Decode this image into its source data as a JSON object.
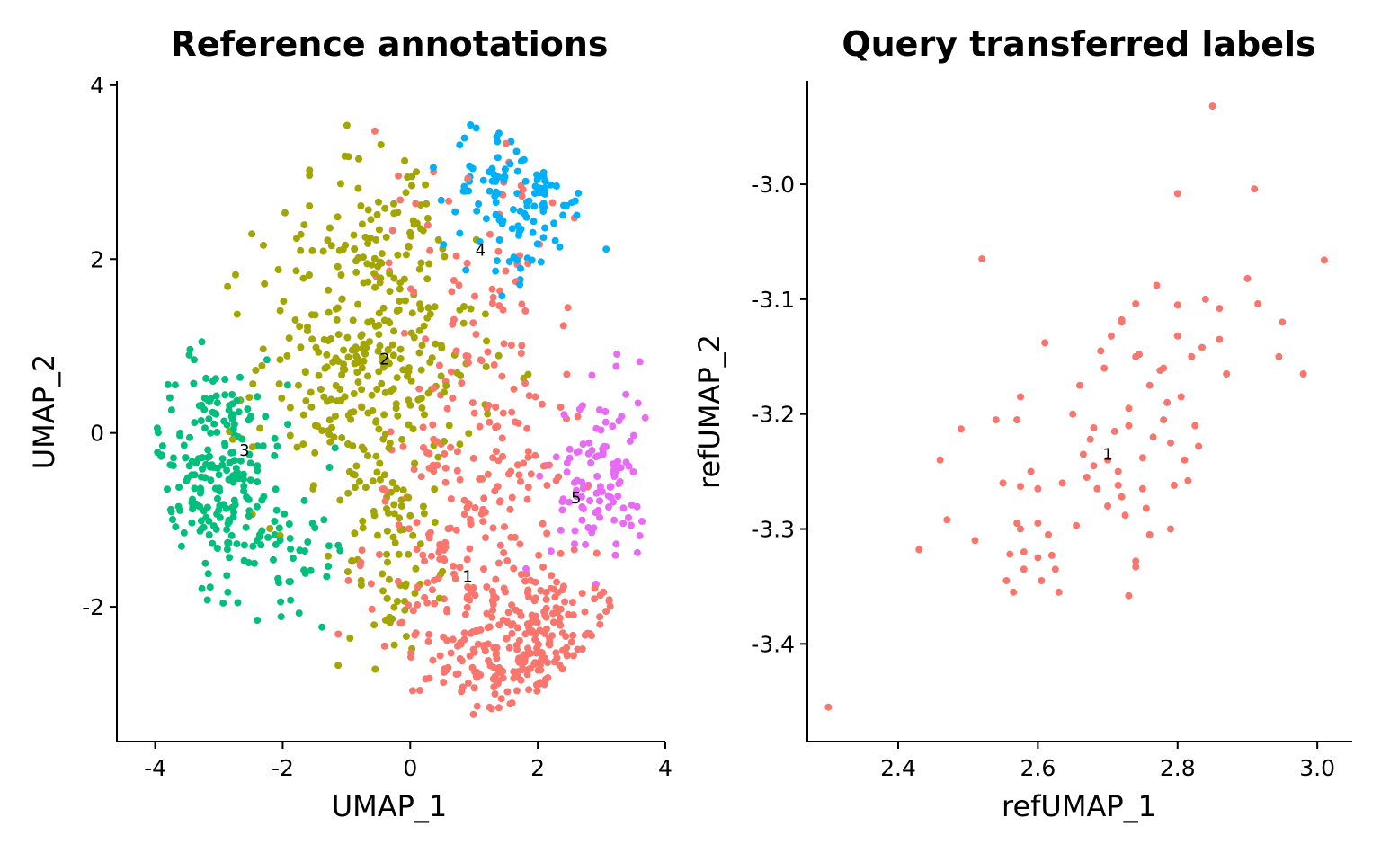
{
  "chart_data": [
    {
      "type": "scatter",
      "title": "Reference annotations",
      "xlabel": "UMAP_1",
      "ylabel": "UMAP_2",
      "xlim": [
        -4.6,
        4.0
      ],
      "ylim": [
        -3.55,
        4.05
      ],
      "xticks": [
        -4,
        -2,
        0,
        2,
        4
      ],
      "xtick_labels": [
        "-4",
        "-2",
        "0",
        "2",
        "4"
      ],
      "yticks": [
        -2,
        0,
        2,
        4
      ],
      "ytick_labels": [
        "-2",
        "0",
        "2",
        "4"
      ],
      "grid": false,
      "legend": "none",
      "series": [
        {
          "label": "1",
          "color": "#F8766D",
          "center": [
            0.9,
            -1.65
          ],
          "blobs": [
            {
              "cx": 1.9,
              "cy": -2.55,
              "sx": 0.75,
              "sy": 0.5,
              "n": 230
            },
            {
              "cx": 0.9,
              "cy": -1.2,
              "sx": 0.8,
              "sy": 0.7,
              "n": 170
            },
            {
              "cx": 1.3,
              "cy": 0.5,
              "sx": 0.6,
              "sy": 0.9,
              "n": 60
            },
            {
              "cx": 0.9,
              "cy": 2.0,
              "sx": 0.8,
              "sy": 0.9,
              "n": 50
            }
          ]
        },
        {
          "label": "2",
          "color": "#A3A500",
          "center": [
            -0.4,
            0.85
          ],
          "blobs": [
            {
              "cx": -0.7,
              "cy": 0.8,
              "sx": 0.85,
              "sy": 0.9,
              "n": 320
            },
            {
              "cx": -0.3,
              "cy": -1.5,
              "sx": 0.35,
              "sy": 0.55,
              "n": 60
            },
            {
              "cx": -0.4,
              "cy": 2.4,
              "sx": 0.5,
              "sy": 0.55,
              "n": 50
            }
          ]
        },
        {
          "label": "3",
          "color": "#00BF7D",
          "center": [
            -2.6,
            -0.2
          ],
          "blobs": [
            {
              "cx": -3.1,
              "cy": -0.45,
              "sx": 0.6,
              "sy": 0.65,
              "n": 220
            },
            {
              "cx": -1.7,
              "cy": -1.3,
              "sx": 0.4,
              "sy": 0.35,
              "n": 40
            }
          ]
        },
        {
          "label": "4",
          "color": "#00B0F6",
          "center": [
            1.1,
            2.1
          ],
          "blobs": [
            {
              "cx": 1.7,
              "cy": 2.75,
              "sx": 0.6,
              "sy": 0.5,
              "n": 120
            }
          ]
        },
        {
          "label": "5",
          "color": "#E76BF3",
          "center": [
            2.6,
            -0.75
          ],
          "blobs": [
            {
              "cx": 3.0,
              "cy": -0.55,
              "sx": 0.4,
              "sy": 0.55,
              "n": 110
            }
          ]
        }
      ]
    },
    {
      "type": "scatter",
      "title": "Query transferred labels",
      "xlabel": "refUMAP_1",
      "ylabel": "refUMAP_2",
      "xlim": [
        2.27,
        3.05
      ],
      "ylim": [
        -3.485,
        -2.91
      ],
      "xticks": [
        2.4,
        2.6,
        2.8,
        3.0
      ],
      "xtick_labels": [
        "2.4",
        "2.6",
        "2.8",
        "3.0"
      ],
      "yticks": [
        -3.0,
        -3.1,
        -3.2,
        -3.3,
        -3.4
      ],
      "ytick_labels": [
        "-3.0",
        "-3.1",
        "-3.2",
        "-3.3",
        "-3.4"
      ],
      "grid": false,
      "legend": "none",
      "series": [
        {
          "label": "1",
          "color": "#F8766D",
          "center": [
            2.7,
            -3.235
          ],
          "points": [
            [
              2.3,
              -3.455
            ],
            [
              2.43,
              -3.318
            ],
            [
              2.47,
              -3.292
            ],
            [
              2.49,
              -3.213
            ],
            [
              2.46,
              -3.24
            ],
            [
              2.51,
              -3.31
            ],
            [
              2.52,
              -3.065
            ],
            [
              2.54,
              -3.205
            ],
            [
              2.55,
              -3.26
            ],
            [
              2.555,
              -3.345
            ],
            [
              2.56,
              -3.322
            ],
            [
              2.565,
              -3.355
            ],
            [
              2.57,
              -3.205
            ],
            [
              2.575,
              -3.185
            ],
            [
              2.57,
              -3.295
            ],
            [
              2.575,
              -3.3
            ],
            [
              2.58,
              -3.32
            ],
            [
              2.58,
              -3.335
            ],
            [
              2.575,
              -3.263
            ],
            [
              2.59,
              -3.25
            ],
            [
              2.6,
              -3.265
            ],
            [
              2.6,
              -3.295
            ],
            [
              2.6,
              -3.325
            ],
            [
              2.605,
              -3.345
            ],
            [
              2.61,
              -3.138
            ],
            [
              2.615,
              -3.305
            ],
            [
              2.62,
              -3.323
            ],
            [
              2.625,
              -3.335
            ],
            [
              2.63,
              -3.355
            ],
            [
              2.635,
              -3.26
            ],
            [
              2.65,
              -3.2
            ],
            [
              2.655,
              -3.297
            ],
            [
              2.66,
              -3.175
            ],
            [
              2.665,
              -3.235
            ],
            [
              2.67,
              -3.255
            ],
            [
              2.675,
              -3.222
            ],
            [
              2.68,
              -3.245
            ],
            [
              2.685,
              -3.265
            ],
            [
              2.69,
              -3.145
            ],
            [
              2.695,
              -3.16
            ],
            [
              2.7,
              -3.24
            ],
            [
              2.7,
              -3.28
            ],
            [
              2.705,
              -3.132
            ],
            [
              2.71,
              -3.215
            ],
            [
              2.715,
              -3.25
            ],
            [
              2.72,
              -3.12
            ],
            [
              2.72,
              -3.272
            ],
            [
              2.725,
              -3.288
            ],
            [
              2.73,
              -3.21
            ],
            [
              2.73,
              -3.358
            ],
            [
              2.74,
              -3.15
            ],
            [
              2.74,
              -3.333
            ],
            [
              2.745,
              -3.148
            ],
            [
              2.75,
              -3.238
            ],
            [
              2.75,
              -3.265
            ],
            [
              2.755,
              -3.282
            ],
            [
              2.76,
              -3.175
            ],
            [
              2.765,
              -3.22
            ],
            [
              2.77,
              -3.088
            ],
            [
              2.775,
              -3.162
            ],
            [
              2.78,
              -3.205
            ],
            [
              2.785,
              -3.19
            ],
            [
              2.79,
              -3.225
            ],
            [
              2.795,
              -3.262
            ],
            [
              2.8,
              -3.008
            ],
            [
              2.8,
              -3.105
            ],
            [
              2.8,
              -3.132
            ],
            [
              2.805,
              -3.185
            ],
            [
              2.81,
              -3.24
            ],
            [
              2.815,
              -3.258
            ],
            [
              2.825,
              -3.21
            ],
            [
              2.83,
              -3.228
            ],
            [
              2.835,
              -3.142
            ],
            [
              2.84,
              -3.1
            ],
            [
              2.85,
              -2.932
            ],
            [
              2.86,
              -3.135
            ],
            [
              2.86,
              -3.108
            ],
            [
              2.87,
              -3.165
            ],
            [
              2.9,
              -3.082
            ],
            [
              2.91,
              -3.004
            ],
            [
              2.915,
              -3.104
            ],
            [
              2.945,
              -3.15
            ],
            [
              2.95,
              -3.12
            ],
            [
              2.98,
              -3.165
            ],
            [
              3.01,
              -3.066
            ],
            [
              2.74,
              -3.104
            ],
            [
              2.72,
              -3.118
            ],
            [
              2.78,
              -3.16
            ],
            [
              2.79,
              -3.3
            ],
            [
              2.715,
              -3.262
            ],
            [
              2.82,
              -3.15
            ],
            [
              2.73,
              -3.195
            ],
            [
              2.76,
              -3.305
            ],
            [
              2.74,
              -3.328
            ],
            [
              2.68,
              -3.212
            ]
          ]
        }
      ]
    }
  ]
}
